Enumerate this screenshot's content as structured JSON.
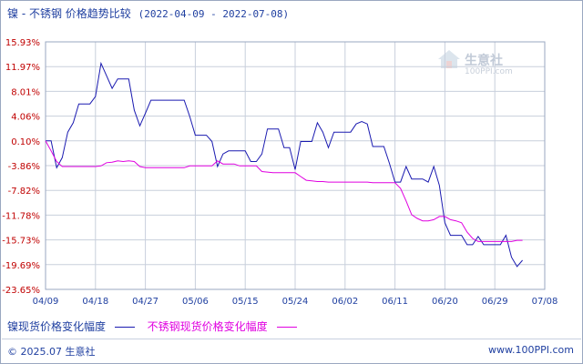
{
  "chart_data": {
    "type": "line",
    "title": "镍 - 不锈钢 价格趋势比较",
    "date_range": "(2022-04-09 - 2022-07-08)",
    "x_tick_labels": [
      "04/09",
      "04/18",
      "04/27",
      "05/06",
      "05/15",
      "05/24",
      "06/02",
      "06/11",
      "06/20",
      "06/29",
      "07/08"
    ],
    "y_tick_labels": [
      "15.93%",
      "11.97%",
      "8.01%",
      "4.06%",
      "0.10%",
      "-3.86%",
      "-7.82%",
      "-11.78%",
      "-15.73%",
      "-19.69%",
      "-23.65%"
    ],
    "ylim": [
      -23.65,
      15.93
    ],
    "grid": true,
    "series": [
      {
        "name": "镍现货价格变化幅度",
        "color": "#1a1ab0",
        "points": [
          [
            0,
            0.1
          ],
          [
            1,
            0.1
          ],
          [
            2,
            -4.2
          ],
          [
            3,
            -2.6
          ],
          [
            4,
            1.5
          ],
          [
            5,
            3.0
          ],
          [
            6,
            6.0
          ],
          [
            7,
            6.0
          ],
          [
            8,
            6.0
          ],
          [
            9,
            7.2
          ],
          [
            10,
            12.5
          ],
          [
            11,
            10.5
          ],
          [
            12,
            8.5
          ],
          [
            13,
            10.0
          ],
          [
            14,
            10.0
          ],
          [
            15,
            10.0
          ],
          [
            16,
            5.0
          ],
          [
            17,
            2.5
          ],
          [
            18,
            4.5
          ],
          [
            19,
            6.6
          ],
          [
            20,
            6.6
          ],
          [
            21,
            6.6
          ],
          [
            22,
            6.6
          ],
          [
            23,
            6.6
          ],
          [
            24,
            6.6
          ],
          [
            25,
            6.6
          ],
          [
            26,
            4.0
          ],
          [
            27,
            1.0
          ],
          [
            28,
            1.0
          ],
          [
            29,
            1.0
          ],
          [
            30,
            0.0
          ],
          [
            31,
            -4.0
          ],
          [
            32,
            -2.0
          ],
          [
            33,
            -1.5
          ],
          [
            34,
            -1.5
          ],
          [
            35,
            -1.5
          ],
          [
            36,
            -1.5
          ],
          [
            37,
            -3.2
          ],
          [
            38,
            -3.2
          ],
          [
            39,
            -2.0
          ],
          [
            40,
            2.0
          ],
          [
            41,
            2.0
          ],
          [
            42,
            2.0
          ],
          [
            43,
            -1.0
          ],
          [
            44,
            -1.0
          ],
          [
            45,
            -4.5
          ],
          [
            46,
            0.0
          ],
          [
            47,
            0.0
          ],
          [
            48,
            0.0
          ],
          [
            49,
            3.0
          ],
          [
            50,
            1.5
          ],
          [
            51,
            -1.0
          ],
          [
            52,
            1.5
          ],
          [
            53,
            1.5
          ],
          [
            54,
            1.5
          ],
          [
            55,
            1.5
          ],
          [
            56,
            2.8
          ],
          [
            57,
            3.2
          ],
          [
            58,
            2.8
          ],
          [
            59,
            -0.8
          ],
          [
            60,
            -0.8
          ],
          [
            61,
            -0.8
          ],
          [
            62,
            -3.5
          ],
          [
            63,
            -6.5
          ],
          [
            64,
            -6.5
          ],
          [
            65,
            -4.0
          ],
          [
            66,
            -6.0
          ],
          [
            67,
            -6.0
          ],
          [
            68,
            -6.0
          ],
          [
            69,
            -6.5
          ],
          [
            70,
            -4.0
          ],
          [
            71,
            -7.0
          ],
          [
            72,
            -13.0
          ],
          [
            73,
            -15.0
          ],
          [
            74,
            -15.0
          ],
          [
            75,
            -15.0
          ],
          [
            76,
            -16.5
          ],
          [
            77,
            -16.5
          ],
          [
            78,
            -15.2
          ],
          [
            79,
            -16.5
          ],
          [
            80,
            -16.5
          ],
          [
            81,
            -16.5
          ],
          [
            82,
            -16.5
          ],
          [
            83,
            -15.0
          ],
          [
            84,
            -18.5
          ],
          [
            85,
            -20.0
          ],
          [
            86,
            -19.0
          ]
        ]
      },
      {
        "name": "不锈钢现货价格变化幅度",
        "color": "#e000e0",
        "points": [
          [
            0,
            0.1
          ],
          [
            1,
            -1.5
          ],
          [
            2,
            -3.2
          ],
          [
            3,
            -4.0
          ],
          [
            4,
            -4.0
          ],
          [
            5,
            -4.0
          ],
          [
            6,
            -4.0
          ],
          [
            7,
            -4.0
          ],
          [
            8,
            -4.0
          ],
          [
            9,
            -4.0
          ],
          [
            10,
            -3.9
          ],
          [
            11,
            -3.4
          ],
          [
            12,
            -3.3
          ],
          [
            13,
            -3.1
          ],
          [
            14,
            -3.2
          ],
          [
            15,
            -3.1
          ],
          [
            16,
            -3.2
          ],
          [
            17,
            -4.0
          ],
          [
            18,
            -4.2
          ],
          [
            19,
            -4.2
          ],
          [
            20,
            -4.2
          ],
          [
            21,
            -4.2
          ],
          [
            22,
            -4.2
          ],
          [
            23,
            -4.2
          ],
          [
            24,
            -4.2
          ],
          [
            25,
            -4.2
          ],
          [
            26,
            -3.9
          ],
          [
            27,
            -3.9
          ],
          [
            28,
            -3.9
          ],
          [
            29,
            -3.9
          ],
          [
            30,
            -3.9
          ],
          [
            31,
            -3.1
          ],
          [
            32,
            -3.6
          ],
          [
            33,
            -3.6
          ],
          [
            34,
            -3.6
          ],
          [
            35,
            -3.9
          ],
          [
            36,
            -3.9
          ],
          [
            37,
            -3.9
          ],
          [
            38,
            -3.9
          ],
          [
            39,
            -4.8
          ],
          [
            40,
            -4.9
          ],
          [
            41,
            -5.0
          ],
          [
            42,
            -5.0
          ],
          [
            43,
            -5.0
          ],
          [
            44,
            -5.0
          ],
          [
            45,
            -5.0
          ],
          [
            46,
            -5.6
          ],
          [
            47,
            -6.2
          ],
          [
            48,
            -6.3
          ],
          [
            49,
            -6.4
          ],
          [
            50,
            -6.4
          ],
          [
            51,
            -6.5
          ],
          [
            52,
            -6.5
          ],
          [
            53,
            -6.5
          ],
          [
            54,
            -6.5
          ],
          [
            55,
            -6.5
          ],
          [
            56,
            -6.5
          ],
          [
            57,
            -6.5
          ],
          [
            58,
            -6.5
          ],
          [
            59,
            -6.6
          ],
          [
            60,
            -6.6
          ],
          [
            61,
            -6.6
          ],
          [
            62,
            -6.6
          ],
          [
            63,
            -6.6
          ],
          [
            64,
            -7.5
          ],
          [
            65,
            -9.5
          ],
          [
            66,
            -11.7
          ],
          [
            67,
            -12.3
          ],
          [
            68,
            -12.7
          ],
          [
            69,
            -12.7
          ],
          [
            70,
            -12.5
          ],
          [
            71,
            -12.0
          ],
          [
            72,
            -12.0
          ],
          [
            73,
            -12.5
          ],
          [
            74,
            -12.7
          ],
          [
            75,
            -13.0
          ],
          [
            76,
            -14.5
          ],
          [
            77,
            -15.5
          ],
          [
            78,
            -16.0
          ],
          [
            79,
            -16.0
          ],
          [
            80,
            -16.0
          ],
          [
            81,
            -16.0
          ],
          [
            82,
            -16.0
          ],
          [
            83,
            -16.0
          ],
          [
            84,
            -16.0
          ],
          [
            85,
            -15.8
          ],
          [
            86,
            -15.8
          ]
        ]
      }
    ]
  },
  "legend": {
    "nickel_label": "镍现货价格变化幅度",
    "steel_label": "不锈钢现货价格变化幅度"
  },
  "footer": {
    "copyright": "© 2025.07 生意社",
    "url": "www.100PPI.com"
  },
  "watermark": {
    "name": "生意社",
    "url": "100PPI.com"
  }
}
